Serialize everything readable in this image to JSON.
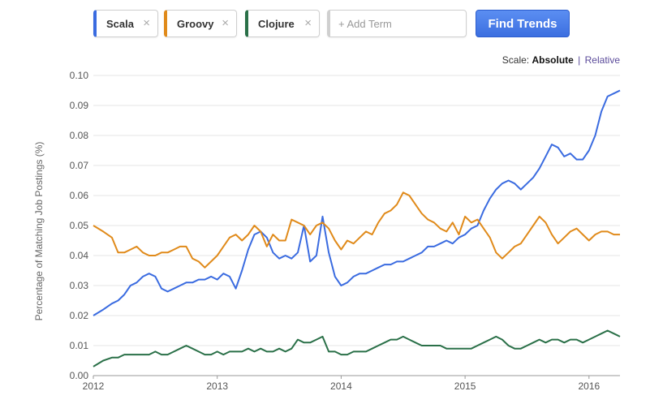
{
  "search": {
    "terms": [
      {
        "label": "Scala",
        "color": "#3a6be0"
      },
      {
        "label": "Groovy",
        "color": "#e08a1a"
      },
      {
        "label": "Clojure",
        "color": "#2a7048"
      }
    ],
    "add_placeholder": "+ Add Term",
    "remove_glyph": "×",
    "find_label": "Find Trends"
  },
  "scale": {
    "label": "Scale:",
    "active": "Absolute",
    "separator": "|",
    "alternate": "Relative"
  },
  "chart_data": {
    "type": "line",
    "ylabel": "Percentage of Matching Job Postings (%)",
    "ylim": [
      0,
      0.1
    ],
    "yticks": [
      "0.00",
      "0.01",
      "0.02",
      "0.03",
      "0.04",
      "0.05",
      "0.06",
      "0.07",
      "0.08",
      "0.09",
      "0.10"
    ],
    "xlim": [
      2012,
      2016.25
    ],
    "xticks": [
      "2012",
      "2013",
      "2014",
      "2015",
      "2016"
    ],
    "grid": true,
    "series": [
      {
        "name": "Scala",
        "color": "#3a6be0",
        "x": [
          2012.0,
          2012.08,
          2012.15,
          2012.2,
          2012.25,
          2012.3,
          2012.35,
          2012.4,
          2012.45,
          2012.5,
          2012.55,
          2012.6,
          2012.65,
          2012.7,
          2012.75,
          2012.8,
          2012.85,
          2012.9,
          2012.95,
          2013.0,
          2013.05,
          2013.1,
          2013.15,
          2013.2,
          2013.25,
          2013.3,
          2013.35,
          2013.4,
          2013.45,
          2013.5,
          2013.55,
          2013.6,
          2013.65,
          2013.7,
          2013.75,
          2013.8,
          2013.85,
          2013.9,
          2013.95,
          2014.0,
          2014.05,
          2014.1,
          2014.15,
          2014.2,
          2014.25,
          2014.3,
          2014.35,
          2014.4,
          2014.45,
          2014.5,
          2014.55,
          2014.6,
          2014.65,
          2014.7,
          2014.75,
          2014.8,
          2014.85,
          2014.9,
          2014.95,
          2015.0,
          2015.05,
          2015.1,
          2015.15,
          2015.2,
          2015.25,
          2015.3,
          2015.35,
          2015.4,
          2015.45,
          2015.5,
          2015.55,
          2015.6,
          2015.65,
          2015.7,
          2015.75,
          2015.8,
          2015.85,
          2015.9,
          2015.95,
          2016.0,
          2016.05,
          2016.1,
          2016.15,
          2016.2,
          2016.25
        ],
        "y": [
          0.02,
          0.022,
          0.024,
          0.025,
          0.027,
          0.03,
          0.031,
          0.033,
          0.034,
          0.033,
          0.029,
          0.028,
          0.029,
          0.03,
          0.031,
          0.031,
          0.032,
          0.032,
          0.033,
          0.032,
          0.034,
          0.033,
          0.029,
          0.035,
          0.042,
          0.047,
          0.048,
          0.046,
          0.041,
          0.039,
          0.04,
          0.039,
          0.041,
          0.05,
          0.038,
          0.04,
          0.053,
          0.041,
          0.033,
          0.03,
          0.031,
          0.033,
          0.034,
          0.034,
          0.035,
          0.036,
          0.037,
          0.037,
          0.038,
          0.038,
          0.039,
          0.04,
          0.041,
          0.043,
          0.043,
          0.044,
          0.045,
          0.044,
          0.046,
          0.047,
          0.049,
          0.05,
          0.055,
          0.059,
          0.062,
          0.064,
          0.065,
          0.064,
          0.062,
          0.064,
          0.066,
          0.069,
          0.073,
          0.077,
          0.076,
          0.073,
          0.074,
          0.072,
          0.072,
          0.075,
          0.08,
          0.088,
          0.093,
          0.094,
          0.095
        ]
      },
      {
        "name": "Groovy",
        "color": "#e08a1a",
        "x": [
          2012.0,
          2012.08,
          2012.15,
          2012.2,
          2012.25,
          2012.3,
          2012.35,
          2012.4,
          2012.45,
          2012.5,
          2012.55,
          2012.6,
          2012.65,
          2012.7,
          2012.75,
          2012.8,
          2012.85,
          2012.9,
          2012.95,
          2013.0,
          2013.05,
          2013.1,
          2013.15,
          2013.2,
          2013.25,
          2013.3,
          2013.35,
          2013.4,
          2013.45,
          2013.5,
          2013.55,
          2013.6,
          2013.65,
          2013.7,
          2013.75,
          2013.8,
          2013.85,
          2013.9,
          2013.95,
          2014.0,
          2014.05,
          2014.1,
          2014.15,
          2014.2,
          2014.25,
          2014.3,
          2014.35,
          2014.4,
          2014.45,
          2014.5,
          2014.55,
          2014.6,
          2014.65,
          2014.7,
          2014.75,
          2014.8,
          2014.85,
          2014.9,
          2014.95,
          2015.0,
          2015.05,
          2015.1,
          2015.15,
          2015.2,
          2015.25,
          2015.3,
          2015.35,
          2015.4,
          2015.45,
          2015.5,
          2015.55,
          2015.6,
          2015.65,
          2015.7,
          2015.75,
          2015.8,
          2015.85,
          2015.9,
          2015.95,
          2016.0,
          2016.05,
          2016.1,
          2016.15,
          2016.2,
          2016.25
        ],
        "y": [
          0.05,
          0.048,
          0.046,
          0.041,
          0.041,
          0.042,
          0.043,
          0.041,
          0.04,
          0.04,
          0.041,
          0.041,
          0.042,
          0.043,
          0.043,
          0.039,
          0.038,
          0.036,
          0.038,
          0.04,
          0.043,
          0.046,
          0.047,
          0.045,
          0.047,
          0.05,
          0.048,
          0.043,
          0.047,
          0.045,
          0.045,
          0.052,
          0.051,
          0.05,
          0.047,
          0.05,
          0.051,
          0.049,
          0.045,
          0.042,
          0.045,
          0.044,
          0.046,
          0.048,
          0.047,
          0.051,
          0.054,
          0.055,
          0.057,
          0.061,
          0.06,
          0.057,
          0.054,
          0.052,
          0.051,
          0.049,
          0.048,
          0.051,
          0.047,
          0.053,
          0.051,
          0.052,
          0.049,
          0.046,
          0.041,
          0.039,
          0.041,
          0.043,
          0.044,
          0.047,
          0.05,
          0.053,
          0.051,
          0.047,
          0.044,
          0.046,
          0.048,
          0.049,
          0.047,
          0.045,
          0.047,
          0.048,
          0.048,
          0.047,
          0.047
        ]
      },
      {
        "name": "Clojure",
        "color": "#2a7048",
        "x": [
          2012.0,
          2012.08,
          2012.15,
          2012.2,
          2012.25,
          2012.3,
          2012.35,
          2012.4,
          2012.45,
          2012.5,
          2012.55,
          2012.6,
          2012.65,
          2012.7,
          2012.75,
          2012.8,
          2012.85,
          2012.9,
          2012.95,
          2013.0,
          2013.05,
          2013.1,
          2013.15,
          2013.2,
          2013.25,
          2013.3,
          2013.35,
          2013.4,
          2013.45,
          2013.5,
          2013.55,
          2013.6,
          2013.65,
          2013.7,
          2013.75,
          2013.8,
          2013.85,
          2013.9,
          2013.95,
          2014.0,
          2014.05,
          2014.1,
          2014.15,
          2014.2,
          2014.25,
          2014.3,
          2014.35,
          2014.4,
          2014.45,
          2014.5,
          2014.55,
          2014.6,
          2014.65,
          2014.7,
          2014.75,
          2014.8,
          2014.85,
          2014.9,
          2014.95,
          2015.0,
          2015.05,
          2015.1,
          2015.15,
          2015.2,
          2015.25,
          2015.3,
          2015.35,
          2015.4,
          2015.45,
          2015.5,
          2015.55,
          2015.6,
          2015.65,
          2015.7,
          2015.75,
          2015.8,
          2015.85,
          2015.9,
          2015.95,
          2016.0,
          2016.05,
          2016.1,
          2016.15,
          2016.2,
          2016.25
        ],
        "y": [
          0.003,
          0.005,
          0.006,
          0.006,
          0.007,
          0.007,
          0.007,
          0.007,
          0.007,
          0.008,
          0.007,
          0.007,
          0.008,
          0.009,
          0.01,
          0.009,
          0.008,
          0.007,
          0.007,
          0.008,
          0.007,
          0.008,
          0.008,
          0.008,
          0.009,
          0.008,
          0.009,
          0.008,
          0.008,
          0.009,
          0.008,
          0.009,
          0.012,
          0.011,
          0.011,
          0.012,
          0.013,
          0.008,
          0.008,
          0.007,
          0.007,
          0.008,
          0.008,
          0.008,
          0.009,
          0.01,
          0.011,
          0.012,
          0.012,
          0.013,
          0.012,
          0.011,
          0.01,
          0.01,
          0.01,
          0.01,
          0.009,
          0.009,
          0.009,
          0.009,
          0.009,
          0.01,
          0.011,
          0.012,
          0.013,
          0.012,
          0.01,
          0.009,
          0.009,
          0.01,
          0.011,
          0.012,
          0.011,
          0.012,
          0.012,
          0.011,
          0.012,
          0.012,
          0.011,
          0.012,
          0.013,
          0.014,
          0.015,
          0.014,
          0.013
        ]
      }
    ]
  }
}
